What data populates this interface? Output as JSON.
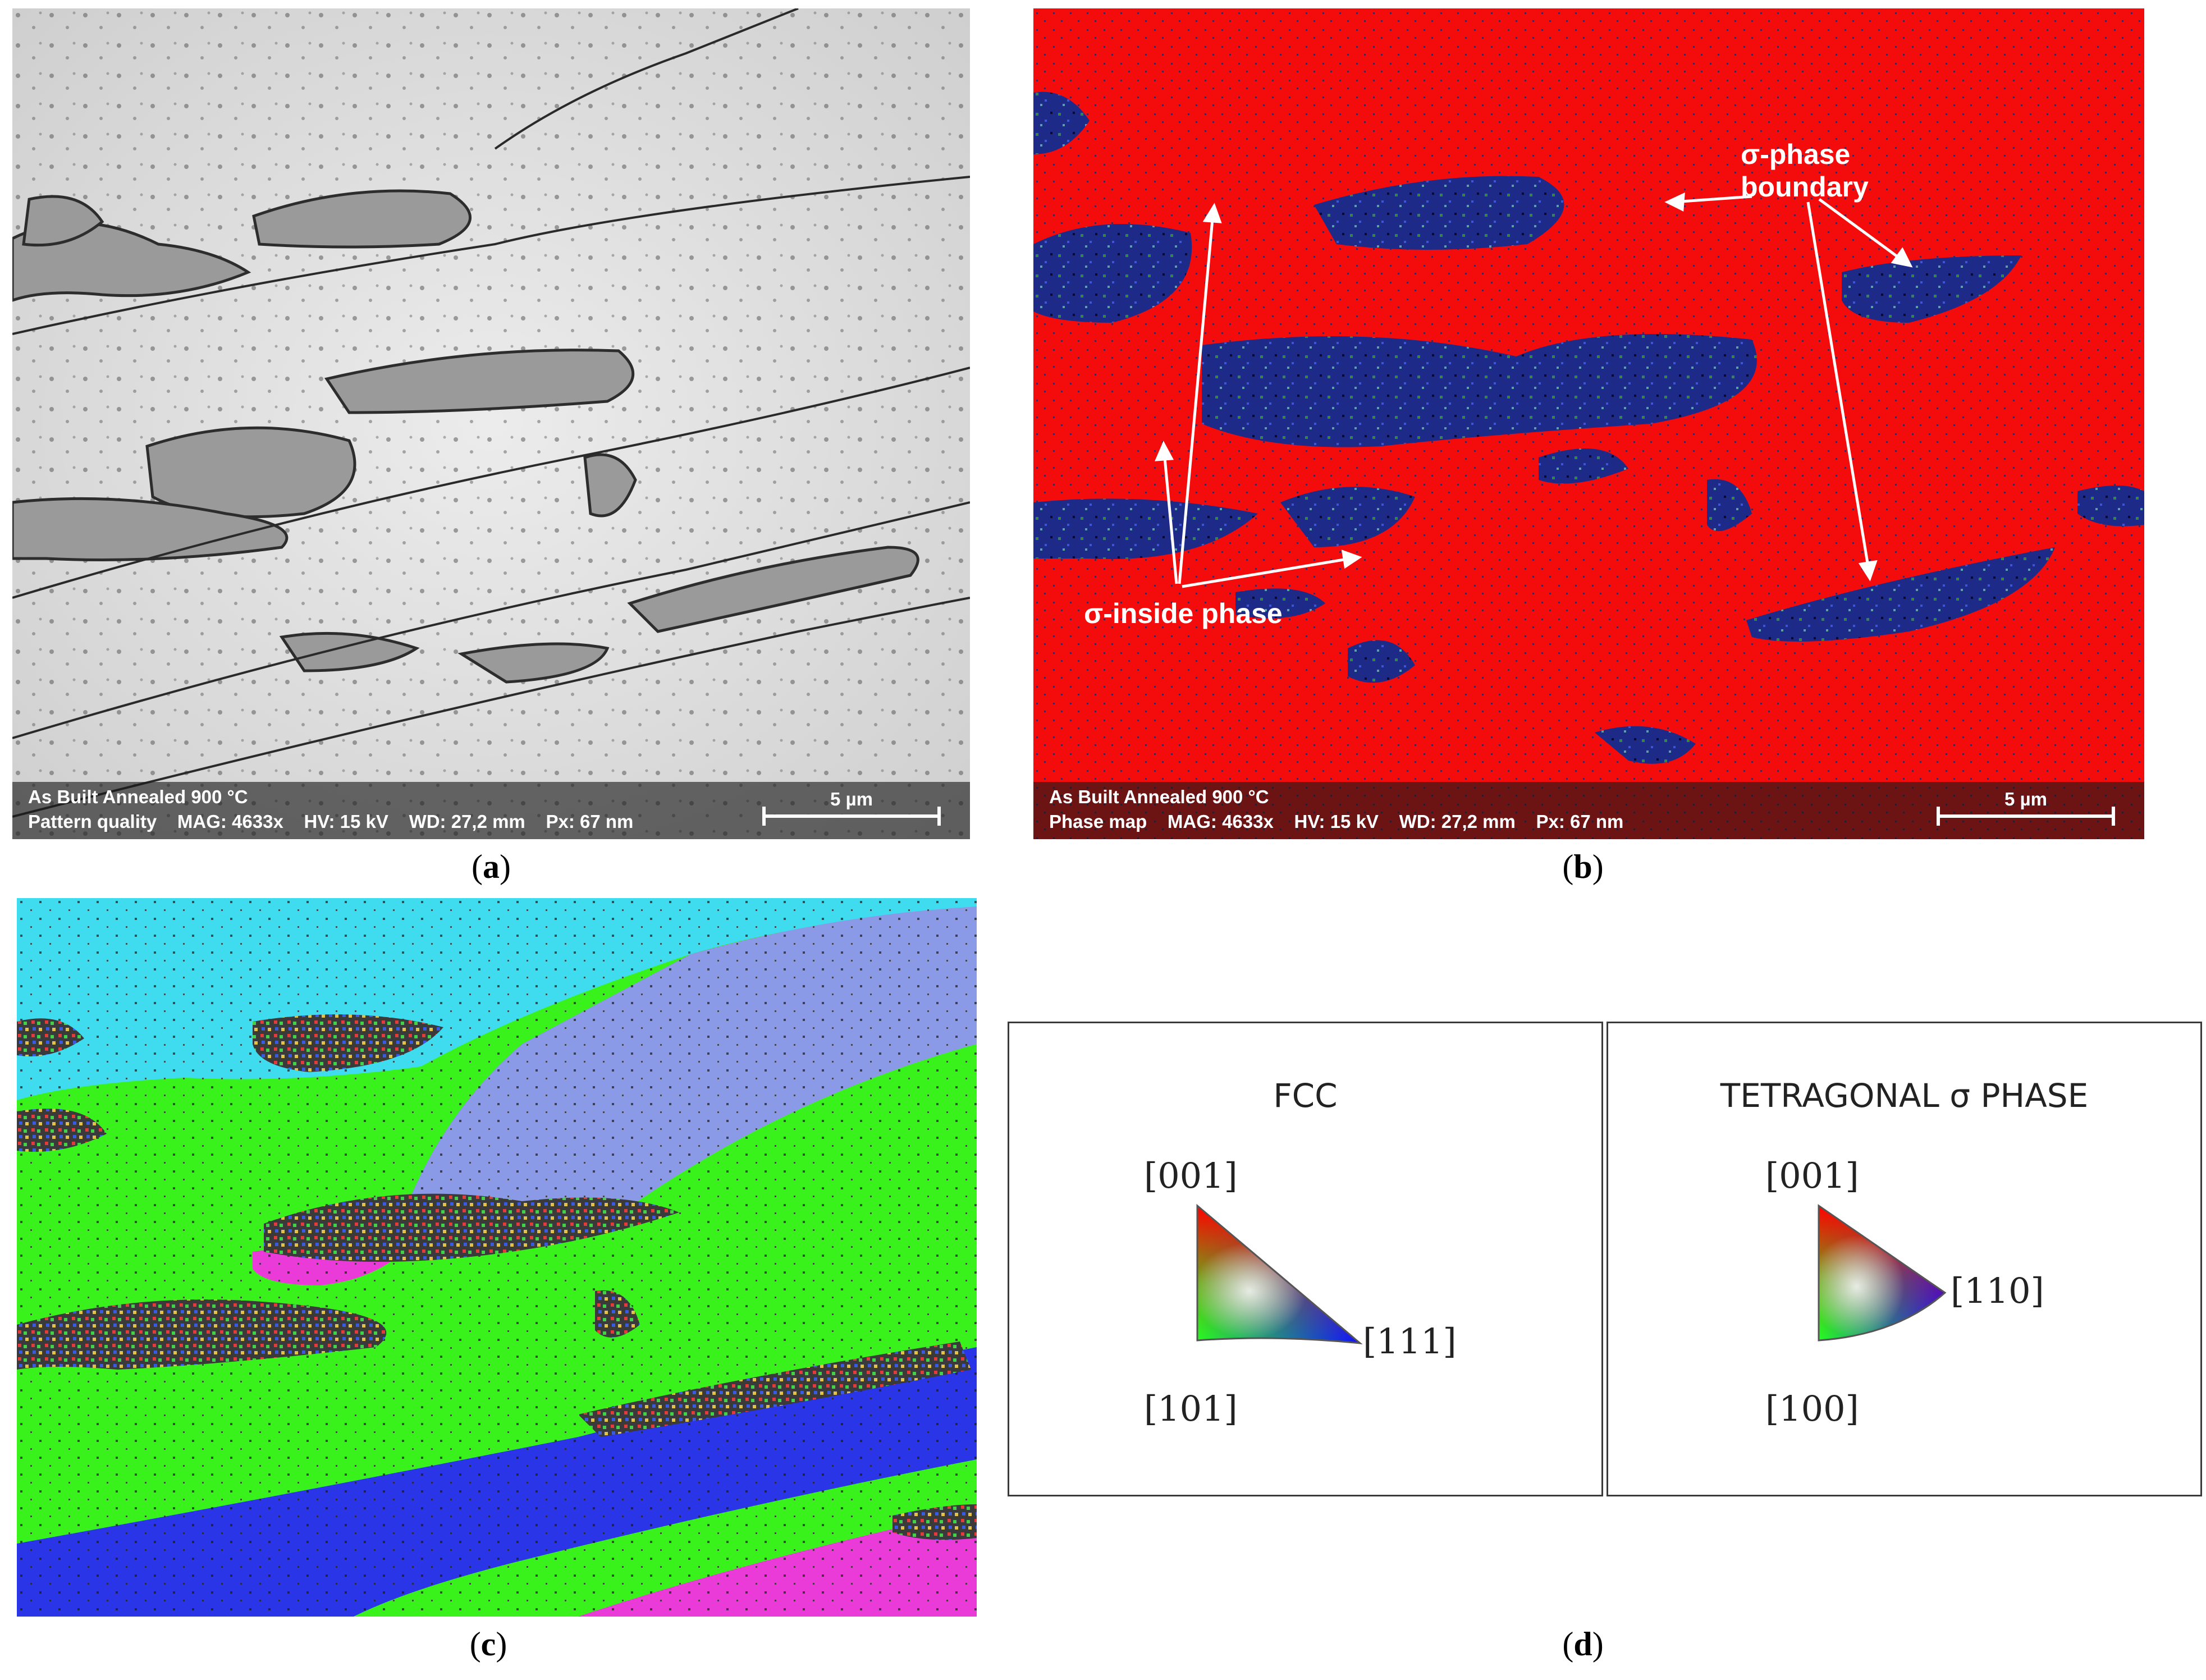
{
  "panels": {
    "a": {
      "caption_open": "(",
      "caption_letter": "a",
      "caption_close": ")",
      "info_line1": "As Built Annealed 900 °C",
      "info_line2": "Pattern quality    MAG: 4633x    HV: 15 kV    WD: 27,2 mm    Px: 67 nm",
      "scale_label": "5 µm"
    },
    "b": {
      "caption_open": "(",
      "caption_letter": "b",
      "caption_close": ")",
      "info_line1": "As Built Annealed 900 °C",
      "info_line2": "Phase map    MAG: 4633x    HV: 15 kV    WD: 27,2 mm    Px: 67 nm",
      "scale_label": "5 µm",
      "annotation_boundary_line1": "σ-phase",
      "annotation_boundary_line2": "boundary",
      "annotation_inside": "σ-inside phase",
      "colors": {
        "matrix": "#f40b0b",
        "sigma": "#1f2f93"
      }
    },
    "c": {
      "caption_open": "(",
      "caption_letter": "c",
      "caption_close": ")",
      "colors": {
        "cyan": "#3fdcf0",
        "lavender": "#8a9ae6",
        "green": "#39f21c",
        "blue": "#2a35e8",
        "magenta": "#ea3ad8"
      }
    },
    "d": {
      "caption_open": "(",
      "caption_letter": "d",
      "caption_close": ")",
      "legends": [
        {
          "title": "FCC",
          "top_label": "[001]",
          "right_label": "[111]",
          "bottom_label": "[101]"
        },
        {
          "title": "TETRAGONAL σ PHASE",
          "top_label": "[001]",
          "right_label": "[110]",
          "bottom_label": "[100]"
        }
      ]
    }
  }
}
